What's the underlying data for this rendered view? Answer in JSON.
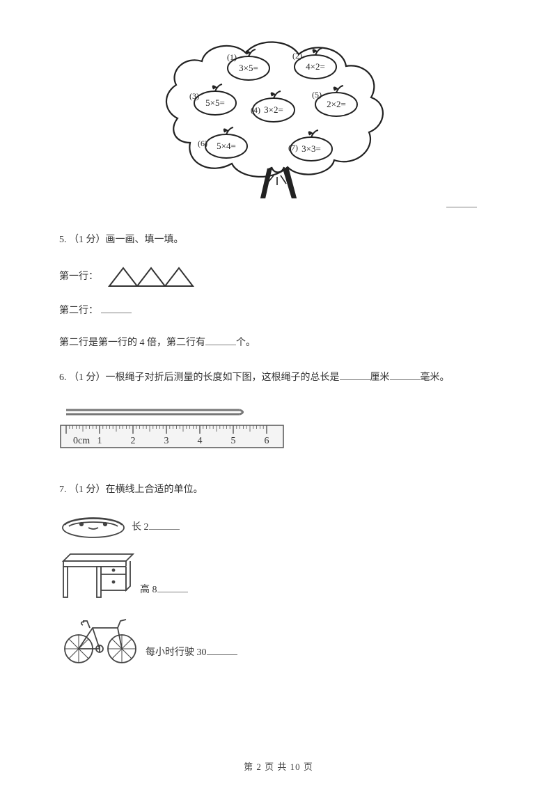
{
  "tree": {
    "apples": [
      {
        "n": "1",
        "eq": "3×5="
      },
      {
        "n": "2",
        "eq": "4×2="
      },
      {
        "n": "3",
        "eq": "5×5="
      },
      {
        "n": "4",
        "eq": "3×2="
      },
      {
        "n": "5",
        "eq": "2×2="
      },
      {
        "n": "6",
        "eq": "5×4="
      },
      {
        "n": "7",
        "eq": "3×3="
      }
    ],
    "stroke": "#222222",
    "fill": "#ffffff"
  },
  "q5": {
    "prompt": "5. （1 分）画一画、填一填。",
    "row1_label": "第一行：",
    "row2_label": "第二行：",
    "sentence_a": "第二行是第一行的 4 倍，第二行有",
    "sentence_b": "个。",
    "triangle_count": 3,
    "triangle_stroke": "#333333"
  },
  "q6": {
    "prompt": "6. （1 分）一根绳子对折后测量的长度如下图，这根绳子的总长是",
    "unit1": "厘米",
    "unit2": "毫米。",
    "ruler": {
      "labels": [
        "0cm",
        "1",
        "2",
        "3",
        "4",
        "5",
        "6"
      ],
      "max": 6,
      "rope_end": 5.2,
      "stroke": "#555555",
      "text": "#333333"
    }
  },
  "q7": {
    "prompt": "7. （1 分）在横线上合适的单位。",
    "items": [
      {
        "label_prefix": "长 2",
        "icon": "pencilcase"
      },
      {
        "label_prefix": "高 8",
        "icon": "desk"
      },
      {
        "label_prefix": "每小时行驶 30",
        "icon": "bicycle"
      }
    ],
    "stroke": "#444444"
  },
  "footer": {
    "text": "第 2 页 共 10 页"
  }
}
